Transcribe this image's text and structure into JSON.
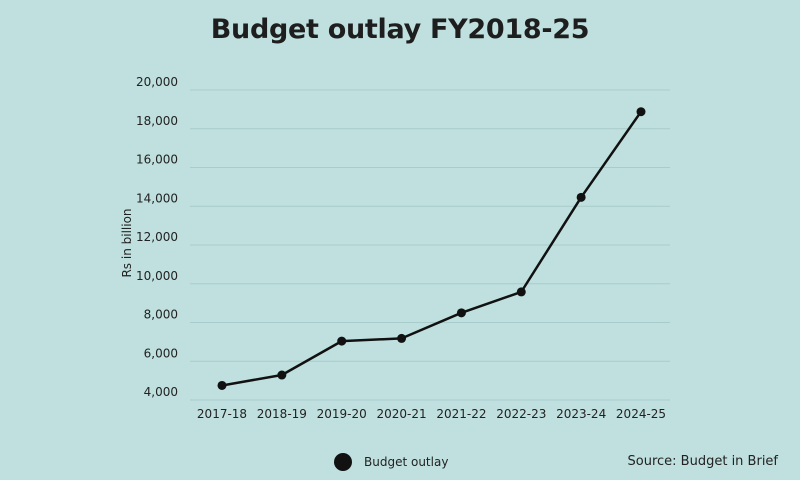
{
  "chart_data": {
    "type": "line",
    "title": "Budget outlay FY2018-25",
    "ylabel": "Rs in billion",
    "xlabel": "",
    "categories": [
      "2017-18",
      "2018-19",
      "2019-20",
      "2020-21",
      "2021-22",
      "2022-23",
      "2023-24",
      "2024-25"
    ],
    "series": [
      {
        "name": "Budget outlay",
        "values": [
          4750,
          5290,
          7040,
          7180,
          8500,
          9580,
          14460,
          18880
        ]
      }
    ],
    "ylim": [
      4000,
      20000
    ],
    "yticks": [
      4000,
      6000,
      8000,
      10000,
      12000,
      14000,
      16000,
      18000,
      20000
    ],
    "ytick_labels": [
      "4,000",
      "6,000",
      "8,000",
      "10,000",
      "12,000",
      "14,000",
      "16,000",
      "18,000",
      "20,000"
    ],
    "grid": true,
    "legend_position": "bottom",
    "marker": "circle",
    "color": "#111111"
  },
  "legend": {
    "label": "Budget outlay"
  },
  "source": "Source: Budget in Brief",
  "colors": {
    "background": "#bfe0df",
    "grid": "#a8cccc",
    "series": "#111111"
  }
}
